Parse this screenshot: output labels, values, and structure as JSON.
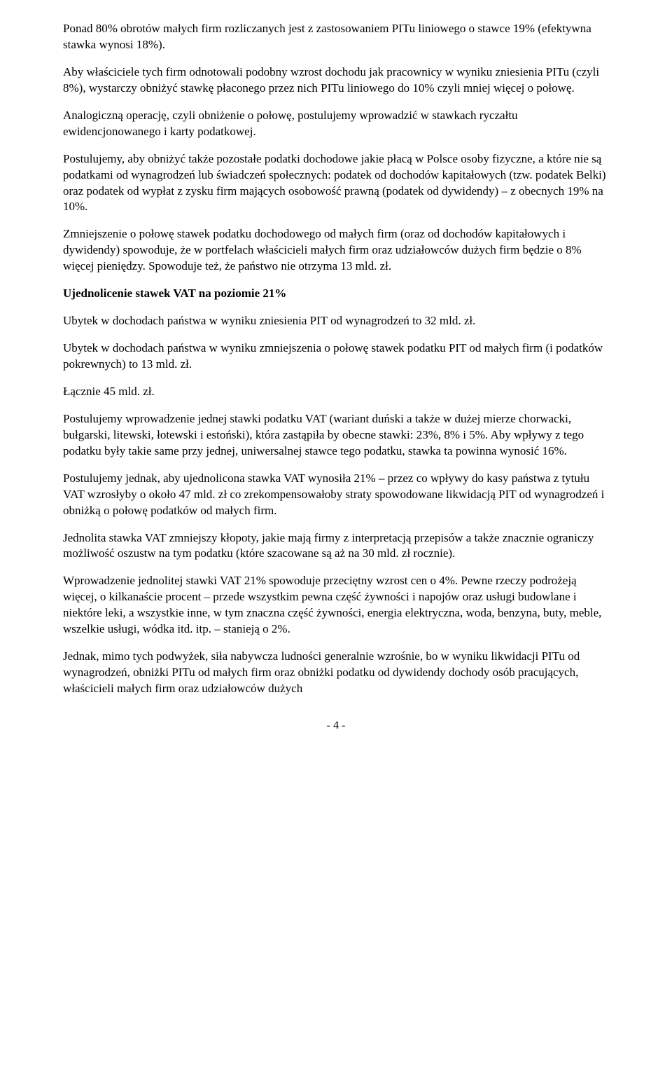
{
  "paragraphs": {
    "p1": "Ponad 80% obrotów małych firm rozliczanych jest z zastosowaniem PITu liniowego o stawce 19% (efektywna stawka wynosi 18%).",
    "p2": "Aby właściciele tych firm odnotowali podobny wzrost dochodu jak pracownicy w wyniku zniesienia PITu (czyli 8%), wystarczy obniżyć stawkę płaconego przez nich PITu liniowego do 10% czyli mniej więcej o połowę.",
    "p3": "Analogiczną operację, czyli obniżenie o połowę, postulujemy wprowadzić w stawkach ryczałtu ewidencjonowanego i karty podatkowej.",
    "p4": "Postulujemy, aby obniżyć także pozostałe podatki dochodowe jakie płacą w Polsce osoby fizyczne, a które nie są podatkami od wynagrodzeń lub świadczeń społecznych:  podatek od dochodów kapitałowych (tzw. podatek Belki) oraz podatek od wypłat z zysku firm mających osobowość prawną (podatek od dywidendy) – z obecnych 19% na 10%.",
    "p5": "Zmniejszenie o połowę stawek podatku dochodowego od małych firm (oraz od dochodów kapitałowych i dywidendy) spowoduje, że w portfelach właścicieli małych firm oraz udziałowców dużych firm będzie o 8% więcej pieniędzy. Spowoduje też, że państwo nie otrzyma 13 mld. zł.",
    "h1": "Ujednolicenie stawek VAT na poziomie 21%",
    "p6": "Ubytek w dochodach państwa w wyniku zniesienia PIT od wynagrodzeń to 32 mld. zł.",
    "p7": "Ubytek w dochodach państwa w wyniku zmniejszenia o połowę stawek podatku PIT od małych firm (i podatków pokrewnych) to 13 mld. zł.",
    "p8": "Łącznie 45 mld. zł.",
    "p9": "Postulujemy wprowadzenie jednej stawki podatku VAT (wariant duński a także w dużej mierze chorwacki, bułgarski, litewski, łotewski i estoński), która zastąpiła by obecne stawki: 23%, 8% i 5%. Aby wpływy z tego podatku były takie same przy jednej, uniwersalnej stawce tego podatku, stawka ta powinna wynosić 16%.",
    "p10": "Postulujemy jednak, aby ujednolicona stawka VAT wynosiła 21% – przez co wpływy do kasy państwa z tytułu VAT wzrosłyby o około 47 mld. zł co zrekompensowałoby straty spowodowane likwidacją PIT od wynagrodzeń i obniżką o połowę podatków od małych firm.",
    "p11": "Jednolita stawka VAT zmniejszy kłopoty, jakie mają firmy z interpretacją przepisów a także znacznie ograniczy możliwość oszustw na tym podatku (które szacowane są aż na 30 mld. zł rocznie).",
    "p12": "Wprowadzenie jednolitej stawki VAT 21% spowoduje przeciętny wzrost cen o 4%. Pewne rzeczy podrożeją więcej, o kilkanaście procent – przede  wszystkim pewna część żywności i napojów oraz usługi budowlane i niektóre leki, a wszystkie inne, w tym znaczna część żywności, energia elektryczna, woda, benzyna, buty, meble, wszelkie usługi, wódka itd. itp. – stanieją o 2%.",
    "p13": "Jednak, mimo tych podwyżek, siła nabywcza ludności generalnie wzrośnie, bo w wyniku likwidacji PITu od wynagrodzeń, obniżki PITu od małych firm oraz obniżki podatku od dywidendy dochody osób pracujących, właścicieli małych firm oraz udziałowców dużych",
    "page_number": "- 4 -"
  }
}
